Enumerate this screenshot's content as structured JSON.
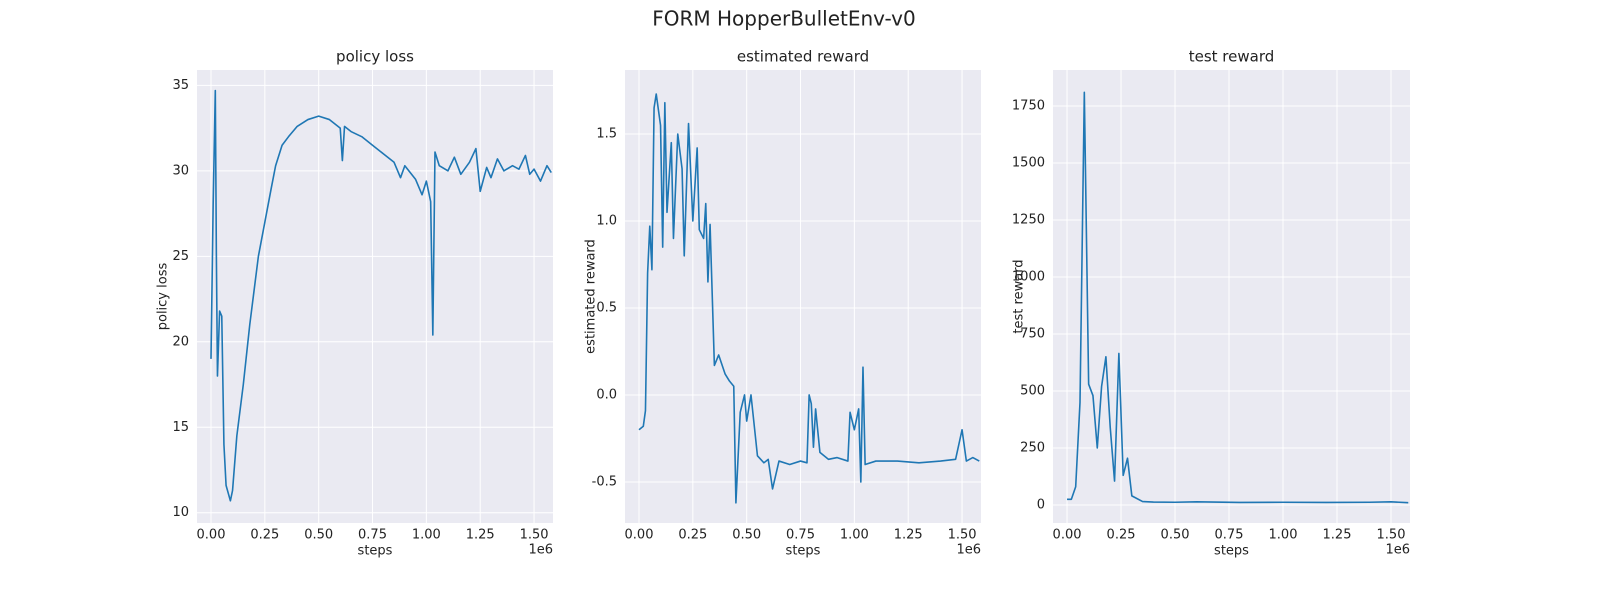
{
  "title": "FORM HopperBulletEnv-v0",
  "chart_data": [
    {
      "type": "line",
      "title": "policy loss",
      "xlabel": "steps",
      "ylabel": "policy loss",
      "x_offset_text": "1e6",
      "color": "#1f77b4",
      "grid": true,
      "xlim": [
        -0.065,
        1.588
      ],
      "ylim": [
        9.4,
        35.9
      ],
      "xticks": [
        {
          "value": 0,
          "label": "0.00"
        },
        0.25,
        {
          "value": 0.5,
          "label": "0.50"
        },
        0.75,
        {
          "value": 1,
          "label": "1.00"
        },
        1.25,
        {
          "value": 1.5,
          "label": "1.50"
        }
      ],
      "yticks": [
        10,
        15,
        20,
        25,
        30,
        35
      ],
      "x": [
        0,
        0.01,
        0.02,
        0.025,
        0.03,
        0.04,
        0.05,
        0.06,
        0.07,
        0.09,
        0.1,
        0.12,
        0.15,
        0.18,
        0.2,
        0.22,
        0.25,
        0.28,
        0.3,
        0.33,
        0.36,
        0.4,
        0.45,
        0.5,
        0.55,
        0.6,
        0.61,
        0.62,
        0.65,
        0.7,
        0.75,
        0.8,
        0.85,
        0.88,
        0.9,
        0.95,
        0.98,
        1.0,
        1.02,
        1.03,
        1.04,
        1.06,
        1.1,
        1.13,
        1.16,
        1.2,
        1.23,
        1.25,
        1.28,
        1.3,
        1.33,
        1.36,
        1.4,
        1.43,
        1.46,
        1.48,
        1.5,
        1.53,
        1.56,
        1.58
      ],
      "values": [
        19,
        28,
        34.7,
        25,
        18,
        21.8,
        21.5,
        14,
        11.6,
        10.7,
        11.3,
        14.5,
        17.5,
        21,
        23,
        25,
        27,
        29,
        30.3,
        31.5,
        32,
        32.6,
        33,
        33.2,
        33,
        32.5,
        30.6,
        32.6,
        32.3,
        32,
        31.5,
        31,
        30.5,
        29.6,
        30.3,
        29.5,
        28.6,
        29.4,
        28.2,
        20.4,
        31.1,
        30.3,
        30,
        30.8,
        29.8,
        30.5,
        31.3,
        28.8,
        30.2,
        29.6,
        30.7,
        30,
        30.3,
        30.1,
        30.9,
        29.8,
        30.1,
        29.4,
        30.3,
        29.9
      ]
    },
    {
      "type": "line",
      "title": "estimated reward",
      "xlabel": "steps",
      "ylabel": "estimated reward",
      "x_offset_text": "1e6",
      "color": "#1f77b4",
      "grid": true,
      "xlim": [
        -0.065,
        1.588
      ],
      "ylim": [
        -0.736,
        1.868
      ],
      "xticks": [
        {
          "value": 0,
          "label": "0.00"
        },
        0.25,
        {
          "value": 0.5,
          "label": "0.50"
        },
        0.75,
        {
          "value": 1,
          "label": "1.00"
        },
        1.25,
        {
          "value": 1.5,
          "label": "1.50"
        }
      ],
      "yticks": [
        -0.5,
        {
          "value": 0,
          "label": "0.0"
        },
        0.5,
        {
          "value": 1,
          "label": "1.0"
        },
        1.5
      ],
      "x": [
        0,
        0.02,
        0.03,
        0.04,
        0.05,
        0.06,
        0.07,
        0.08,
        0.1,
        0.11,
        0.12,
        0.13,
        0.15,
        0.16,
        0.18,
        0.2,
        0.21,
        0.23,
        0.25,
        0.27,
        0.28,
        0.3,
        0.31,
        0.32,
        0.33,
        0.35,
        0.37,
        0.4,
        0.42,
        0.44,
        0.45,
        0.47,
        0.49,
        0.5,
        0.52,
        0.55,
        0.58,
        0.6,
        0.62,
        0.65,
        0.7,
        0.75,
        0.78,
        0.79,
        0.8,
        0.81,
        0.82,
        0.84,
        0.88,
        0.92,
        0.97,
        0.98,
        1.0,
        1.02,
        1.03,
        1.04,
        1.05,
        1.1,
        1.2,
        1.3,
        1.4,
        1.47,
        1.5,
        1.52,
        1.55,
        1.58
      ],
      "values": [
        -0.2,
        -0.18,
        -0.09,
        0.7,
        0.97,
        0.72,
        1.65,
        1.73,
        1.55,
        0.85,
        1.68,
        1.05,
        1.45,
        0.9,
        1.5,
        1.3,
        0.8,
        1.56,
        1.0,
        1.42,
        0.95,
        0.9,
        1.1,
        0.65,
        0.98,
        0.17,
        0.23,
        0.12,
        0.08,
        0.05,
        -0.62,
        -0.1,
        0.0,
        -0.15,
        0.0,
        -0.35,
        -0.39,
        -0.37,
        -0.54,
        -0.38,
        -0.4,
        -0.38,
        -0.39,
        0.0,
        -0.05,
        -0.3,
        -0.08,
        -0.33,
        -0.37,
        -0.36,
        -0.38,
        -0.1,
        -0.2,
        -0.08,
        -0.5,
        0.16,
        -0.4,
        -0.38,
        -0.38,
        -0.39,
        -0.38,
        -0.37,
        -0.2,
        -0.38,
        -0.36,
        -0.38
      ]
    },
    {
      "type": "line",
      "title": "test reward",
      "xlabel": "steps",
      "ylabel": "test reward",
      "x_offset_text": "1e6",
      "color": "#1f77b4",
      "grid": true,
      "xlim": [
        -0.065,
        1.588
      ],
      "ylim": [
        -79,
        1908
      ],
      "xticks": [
        {
          "value": 0,
          "label": "0.00"
        },
        0.25,
        {
          "value": 0.5,
          "label": "0.50"
        },
        0.75,
        {
          "value": 1,
          "label": "1.00"
        },
        1.25,
        {
          "value": 1.5,
          "label": "1.50"
        }
      ],
      "yticks": [
        0,
        250,
        500,
        750,
        1000,
        1250,
        1500,
        1750
      ],
      "x": [
        0,
        0.02,
        0.04,
        0.06,
        0.08,
        0.1,
        0.12,
        0.14,
        0.16,
        0.18,
        0.2,
        0.22,
        0.24,
        0.26,
        0.28,
        0.3,
        0.35,
        0.4,
        0.5,
        0.6,
        0.8,
        1.0,
        1.2,
        1.4,
        1.5,
        1.58
      ],
      "values": [
        25,
        25,
        80,
        450,
        1810,
        530,
        480,
        250,
        520,
        650,
        340,
        105,
        665,
        130,
        205,
        40,
        15,
        13,
        12,
        14,
        11,
        12,
        11,
        12,
        14,
        10
      ]
    }
  ]
}
